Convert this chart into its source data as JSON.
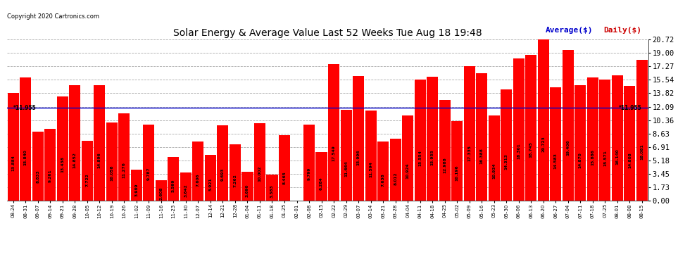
{
  "title": "Solar Energy & Average Value Last 52 Weeks Tue Aug 18 19:48",
  "copyright": "Copyright 2020 Cartronics.com",
  "legend_avg": "Average($)",
  "legend_daily": "Daily($)",
  "average_value": 11.955,
  "bar_color": "#ff0000",
  "average_line_color": "#0000cc",
  "background_color": "#ffffff",
  "grid_color": "#aaaaaa",
  "yticks": [
    0.0,
    1.73,
    3.45,
    5.18,
    6.91,
    8.63,
    10.36,
    12.09,
    13.82,
    15.54,
    17.27,
    19.0,
    20.72
  ],
  "ylim": [
    0.0,
    20.72
  ],
  "categories": [
    "08-24",
    "08-31",
    "09-07",
    "09-14",
    "09-21",
    "09-28",
    "10-05",
    "10-12",
    "10-19",
    "10-26",
    "11-02",
    "11-09",
    "11-16",
    "11-23",
    "11-30",
    "12-07",
    "12-14",
    "12-21",
    "12-28",
    "01-04",
    "01-11",
    "01-18",
    "01-25",
    "02-01",
    "02-08",
    "02-15",
    "02-22",
    "02-29",
    "03-07",
    "03-14",
    "03-21",
    "03-28",
    "04-04",
    "04-11",
    "04-18",
    "04-25",
    "05-02",
    "05-09",
    "05-16",
    "05-23",
    "05-30",
    "06-06",
    "06-13",
    "06-20",
    "06-27",
    "07-04",
    "07-11",
    "07-18",
    "07-25",
    "08-01",
    "08-08",
    "08-15"
  ],
  "values": [
    13.884,
    15.84,
    8.833,
    9.261,
    13.438,
    14.852,
    7.722,
    14.896,
    10.058,
    11.276,
    3.989,
    9.787,
    2.608,
    5.599,
    3.642,
    7.606,
    5.921,
    9.693,
    7.262,
    3.69,
    10.002,
    3.383,
    8.465,
    0.008,
    9.799,
    6.284,
    17.549,
    11.664,
    15.996,
    11.594,
    7.638,
    8.012,
    10.924,
    15.554,
    15.955,
    12.988,
    10.196,
    17.335,
    16.388,
    10.934,
    14.313,
    18.301,
    18.745,
    20.723,
    14.583,
    19.406,
    14.87,
    15.886,
    15.571,
    16.14,
    14.808,
    18.081
  ]
}
